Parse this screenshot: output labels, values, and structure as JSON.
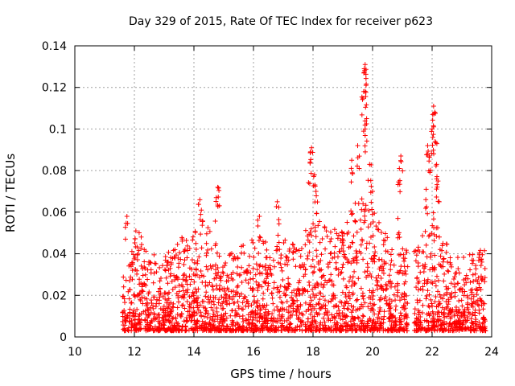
{
  "chart_data": {
    "type": "scatter",
    "title": "Day 329 of 2015, Rate Of TEC Index for receiver p623",
    "xlabel": "GPS time / hours",
    "ylabel": "ROTI / TECUs",
    "xlim": [
      10,
      24
    ],
    "ylim": [
      0,
      0.14
    ],
    "xticks": [
      "10",
      "12",
      "14",
      "16",
      "18",
      "20",
      "22",
      "24"
    ],
    "yticks": [
      "0",
      "0.02",
      "0.04",
      "0.06",
      "0.08",
      "0.1",
      "0.12",
      "0.14"
    ],
    "grid": true,
    "marker": "+",
    "color": "#ff0000",
    "series": [
      {
        "name": "ROTI",
        "data_start_hour": 11.6,
        "data_end_hour": 23.8,
        "gap_hours": [
          21.2,
          21.4
        ],
        "envelope": [
          [
            11.6,
            0.028
          ],
          [
            12.1,
            0.05
          ],
          [
            12.5,
            0.038
          ],
          [
            13.0,
            0.035
          ],
          [
            13.5,
            0.045
          ],
          [
            14.0,
            0.048
          ],
          [
            14.5,
            0.05
          ],
          [
            15.0,
            0.035
          ],
          [
            15.5,
            0.04
          ],
          [
            16.0,
            0.045
          ],
          [
            16.5,
            0.05
          ],
          [
            17.0,
            0.045
          ],
          [
            17.5,
            0.04
          ],
          [
            18.0,
            0.06
          ],
          [
            18.5,
            0.048
          ],
          [
            19.0,
            0.05
          ],
          [
            19.5,
            0.065
          ],
          [
            20.0,
            0.06
          ],
          [
            20.5,
            0.045
          ],
          [
            21.0,
            0.04
          ],
          [
            21.5,
            0.04
          ],
          [
            22.0,
            0.06
          ],
          [
            22.5,
            0.042
          ],
          [
            23.0,
            0.035
          ],
          [
            23.8,
            0.04
          ]
        ],
        "peaks": [
          [
            11.75,
            0.058
          ],
          [
            12.05,
            0.051
          ],
          [
            14.2,
            0.066
          ],
          [
            14.25,
            0.061
          ],
          [
            14.8,
            0.072
          ],
          [
            14.75,
            0.067
          ],
          [
            16.2,
            0.058
          ],
          [
            16.8,
            0.065
          ],
          [
            17.95,
            0.091
          ],
          [
            17.9,
            0.084
          ],
          [
            18.05,
            0.078
          ],
          [
            18.1,
            0.07
          ],
          [
            19.3,
            0.085
          ],
          [
            19.5,
            0.092
          ],
          [
            19.75,
            0.131
          ],
          [
            19.72,
            0.129
          ],
          [
            19.78,
            0.121
          ],
          [
            19.7,
            0.118
          ],
          [
            19.8,
            0.105
          ],
          [
            19.75,
            0.1
          ],
          [
            19.9,
            0.083
          ],
          [
            20.0,
            0.07
          ],
          [
            20.95,
            0.087
          ],
          [
            20.9,
            0.081
          ],
          [
            20.85,
            0.057
          ],
          [
            21.85,
            0.092
          ],
          [
            21.9,
            0.087
          ],
          [
            22.05,
            0.111
          ],
          [
            22.02,
            0.107
          ],
          [
            22.0,
            0.1
          ],
          [
            22.1,
            0.094
          ],
          [
            22.15,
            0.083
          ],
          [
            21.8,
            0.071
          ],
          [
            22.2,
            0.075
          ]
        ]
      }
    ]
  }
}
